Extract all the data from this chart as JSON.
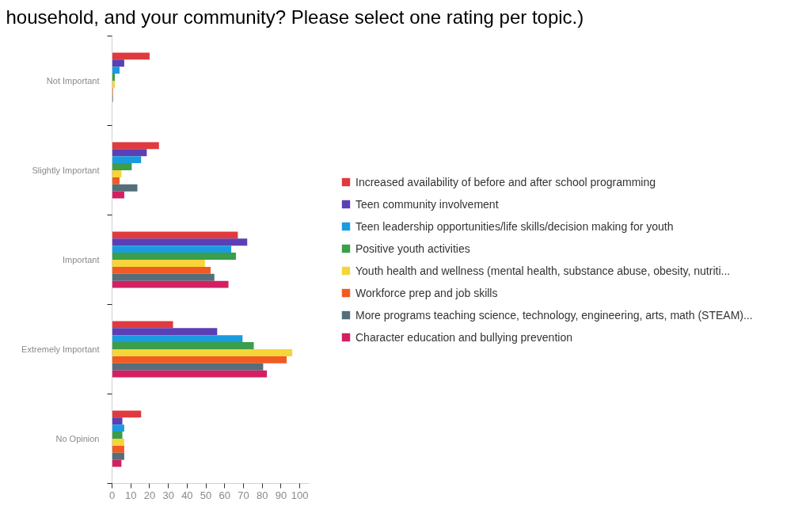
{
  "chart_data": {
    "type": "bar",
    "orientation": "horizontal",
    "title": "household, and your community? Please select one rating per topic.)",
    "categories": [
      "Not Important",
      "Slightly Important",
      "Important",
      "Extremely Important",
      "No Opinion"
    ],
    "xlim": [
      0,
      105
    ],
    "xticks": [
      0,
      10,
      20,
      30,
      40,
      50,
      60,
      70,
      80,
      90,
      100
    ],
    "legend": "right",
    "series": [
      {
        "name": "Increased availability of before and after school programming",
        "color": "#e03a3e",
        "values": [
          20,
          25,
          67,
          32.5,
          15.5
        ]
      },
      {
        "name": "Teen community involvement",
        "color": "#5b3fb5",
        "values": [
          6.5,
          18.5,
          72,
          56,
          5.5
        ]
      },
      {
        "name": "Teen leadership opportunities/life skills/decision making for youth",
        "color": "#1a9be0",
        "values": [
          4,
          15.5,
          63.5,
          69.5,
          6.5
        ]
      },
      {
        "name": "Positive youth activities",
        "color": "#3a9e4a",
        "values": [
          1.5,
          10.5,
          66,
          75.5,
          5.5
        ]
      },
      {
        "name": "Youth health and wellness (mental health, substance abuse, obesity, nutriti...",
        "color": "#f5d53a",
        "values": [
          1.5,
          5,
          49.5,
          96,
          6.5
        ]
      },
      {
        "name": "Workforce prep and job skills",
        "color": "#f15a22",
        "values": [
          0.5,
          4,
          52.5,
          93,
          6.5
        ]
      },
      {
        "name": "More programs teaching science, technology, engineering, arts, math (STEAM)...",
        "color": "#546e7a",
        "values": [
          0.5,
          13.5,
          54.5,
          80.5,
          6.5
        ]
      },
      {
        "name": "Character education and bullying prevention",
        "color": "#d41f62",
        "values": [
          0,
          6.5,
          62,
          82.5,
          5
        ]
      }
    ]
  }
}
